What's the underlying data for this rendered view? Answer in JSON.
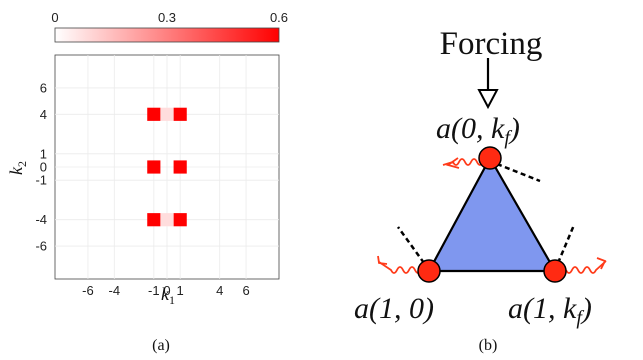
{
  "panel_a": {
    "caption": "(a)",
    "colorbar": {
      "min_label": "0",
      "mid_label": "0.3",
      "max_label": "0.6",
      "max_color": "#ff0000"
    },
    "chart_data": {
      "type": "heatmap",
      "xlabel_base": "k",
      "xlabel_sub": "1",
      "ylabel_base": "k",
      "ylabel_sub": "2",
      "xlim": [
        -8.5,
        8.5
      ],
      "ylim": [
        -8.5,
        8.5
      ],
      "x_ticks": [
        {
          "v": -6,
          "label": "-6"
        },
        {
          "v": -4,
          "label": "-4"
        },
        {
          "v": -1,
          "label": "-1"
        },
        {
          "v": 0,
          "label": "0"
        },
        {
          "v": 1,
          "label": "1"
        },
        {
          "v": 4,
          "label": "4"
        },
        {
          "v": 6,
          "label": "6"
        }
      ],
      "y_ticks": [
        {
          "v": 6,
          "label": "6"
        },
        {
          "v": 4,
          "label": "4"
        },
        {
          "v": 1,
          "label": "1"
        },
        {
          "v": 0,
          "label": "0"
        },
        {
          "v": -1,
          "label": "-1"
        },
        {
          "v": -4,
          "label": "-4"
        },
        {
          "v": -6,
          "label": "-6"
        }
      ],
      "color_range": [
        0,
        0.6
      ],
      "cells": [
        {
          "x": -1,
          "y": 4,
          "value": 0.6
        },
        {
          "x": 1,
          "y": 4,
          "value": 0.6
        },
        {
          "x": 0,
          "y": 4,
          "value": 0.08
        },
        {
          "x": -1,
          "y": 0,
          "value": 0.6
        },
        {
          "x": 1,
          "y": 0,
          "value": 0.6
        },
        {
          "x": -1,
          "y": -4,
          "value": 0.6
        },
        {
          "x": 1,
          "y": -4,
          "value": 0.6
        },
        {
          "x": 0,
          "y": -4,
          "value": 0.08
        }
      ]
    }
  },
  "panel_b": {
    "caption": "(b)",
    "forcing_label": "Forcing",
    "node_top": {
      "prefix": "a(0, ",
      "var": "k",
      "sub": "f",
      "suffix": ")"
    },
    "node_left": {
      "text": "a(1, 0)"
    },
    "node_right": {
      "prefix": "a(1, ",
      "var": "k",
      "sub": "f",
      "suffix": ")"
    },
    "colors": {
      "triangle": "#7f97ef",
      "node": "#ff2a12",
      "wave": "#ff3b1a"
    }
  }
}
